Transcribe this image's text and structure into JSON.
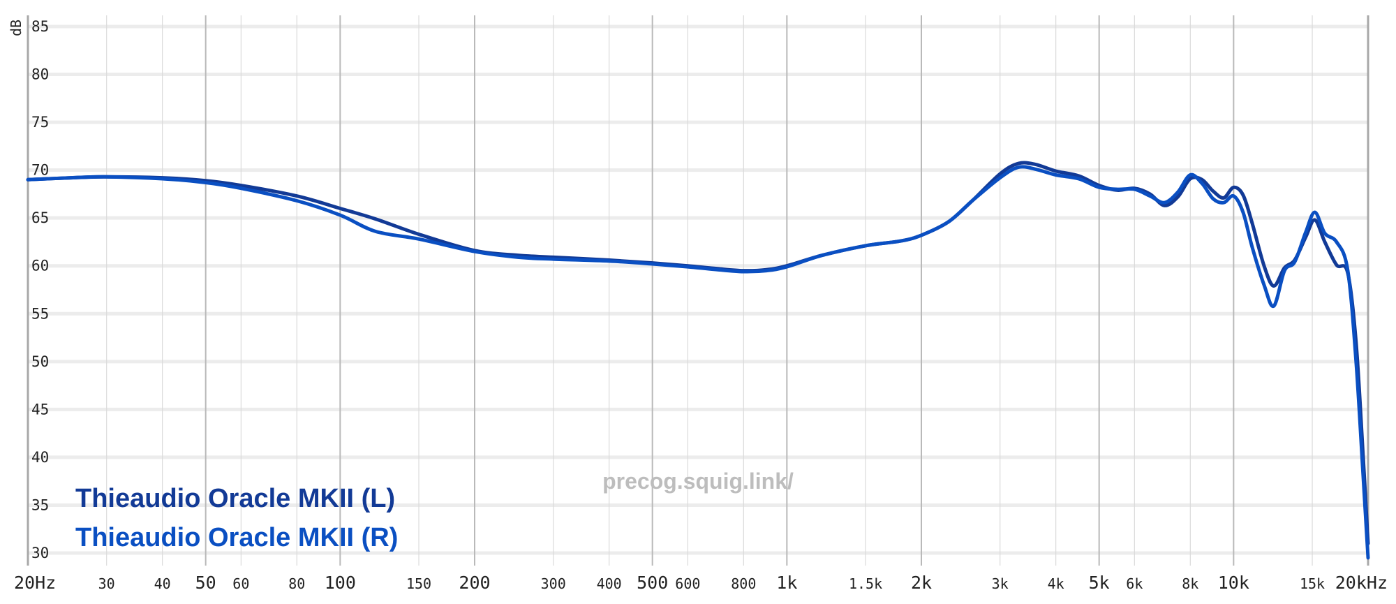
{
  "chart_data": {
    "type": "line",
    "title": "",
    "xlabel": "",
    "ylabel": "dB",
    "x_scale": "log",
    "xlim": [
      20,
      20000
    ],
    "ylim": [
      30,
      85
    ],
    "grid": true,
    "legend_position": "bottom-left",
    "watermark": "precog.squig.link/",
    "x_ticks": [
      {
        "value": 20,
        "label": "20Hz",
        "major": true
      },
      {
        "value": 30,
        "label": "30",
        "major": false
      },
      {
        "value": 40,
        "label": "40",
        "major": false
      },
      {
        "value": 50,
        "label": "50",
        "major": true
      },
      {
        "value": 60,
        "label": "60",
        "major": false
      },
      {
        "value": 80,
        "label": "80",
        "major": false
      },
      {
        "value": 100,
        "label": "100",
        "major": true
      },
      {
        "value": 150,
        "label": "150",
        "major": false
      },
      {
        "value": 200,
        "label": "200",
        "major": true
      },
      {
        "value": 300,
        "label": "300",
        "major": false
      },
      {
        "value": 400,
        "label": "400",
        "major": false
      },
      {
        "value": 500,
        "label": "500",
        "major": true
      },
      {
        "value": 600,
        "label": "600",
        "major": false
      },
      {
        "value": 800,
        "label": "800",
        "major": false
      },
      {
        "value": 1000,
        "label": "1k",
        "major": true
      },
      {
        "value": 1500,
        "label": "1.5k",
        "major": false
      },
      {
        "value": 2000,
        "label": "2k",
        "major": true
      },
      {
        "value": 3000,
        "label": "3k",
        "major": false
      },
      {
        "value": 4000,
        "label": "4k",
        "major": false
      },
      {
        "value": 5000,
        "label": "5k",
        "major": true
      },
      {
        "value": 6000,
        "label": "6k",
        "major": false
      },
      {
        "value": 8000,
        "label": "8k",
        "major": false
      },
      {
        "value": 10000,
        "label": "10k",
        "major": true
      },
      {
        "value": 15000,
        "label": "15k",
        "major": false
      },
      {
        "value": 20000,
        "label": "20kHz",
        "major": true
      }
    ],
    "y_ticks": [
      85,
      80,
      75,
      70,
      65,
      60,
      55,
      50,
      45,
      40,
      35,
      30
    ],
    "series": [
      {
        "name": "Thieaudio Oracle MKII (L)",
        "color": "#123a96",
        "points": [
          [
            20,
            69.0
          ],
          [
            25,
            69.2
          ],
          [
            30,
            69.3
          ],
          [
            40,
            69.2
          ],
          [
            50,
            68.9
          ],
          [
            60,
            68.4
          ],
          [
            80,
            67.3
          ],
          [
            100,
            66.0
          ],
          [
            120,
            64.9
          ],
          [
            150,
            63.3
          ],
          [
            200,
            61.6
          ],
          [
            250,
            61.1
          ],
          [
            300,
            60.9
          ],
          [
            400,
            60.6
          ],
          [
            500,
            60.3
          ],
          [
            600,
            60.0
          ],
          [
            700,
            59.7
          ],
          [
            800,
            59.5
          ],
          [
            900,
            59.6
          ],
          [
            1000,
            60.0
          ],
          [
            1200,
            61.1
          ],
          [
            1500,
            62.1
          ],
          [
            1800,
            62.6
          ],
          [
            2000,
            63.2
          ],
          [
            2300,
            64.6
          ],
          [
            2600,
            66.8
          ],
          [
            3000,
            69.6
          ],
          [
            3300,
            70.7
          ],
          [
            3600,
            70.6
          ],
          [
            4000,
            69.9
          ],
          [
            4500,
            69.4
          ],
          [
            5000,
            68.4
          ],
          [
            5500,
            67.9
          ],
          [
            6000,
            68.1
          ],
          [
            6500,
            67.5
          ],
          [
            7000,
            66.3
          ],
          [
            7500,
            67.2
          ],
          [
            8000,
            69.1
          ],
          [
            8500,
            69.0
          ],
          [
            9000,
            67.8
          ],
          [
            9500,
            67.1
          ],
          [
            10000,
            68.2
          ],
          [
            10500,
            67.4
          ],
          [
            11000,
            64.5
          ],
          [
            11700,
            60.0
          ],
          [
            12300,
            57.9
          ],
          [
            13000,
            59.8
          ],
          [
            13700,
            60.6
          ],
          [
            14500,
            63.0
          ],
          [
            15200,
            64.8
          ],
          [
            16000,
            62.5
          ],
          [
            17000,
            60.1
          ],
          [
            18000,
            59.3
          ],
          [
            18800,
            52.0
          ],
          [
            19500,
            40.0
          ],
          [
            20000,
            31.0
          ]
        ]
      },
      {
        "name": "Thieaudio Oracle MKII (R)",
        "color": "#0a4fc2",
        "points": [
          [
            20,
            69.0
          ],
          [
            25,
            69.2
          ],
          [
            30,
            69.3
          ],
          [
            40,
            69.1
          ],
          [
            50,
            68.7
          ],
          [
            60,
            68.1
          ],
          [
            80,
            66.8
          ],
          [
            100,
            65.3
          ],
          [
            120,
            63.6
          ],
          [
            150,
            62.8
          ],
          [
            200,
            61.5
          ],
          [
            250,
            60.9
          ],
          [
            300,
            60.7
          ],
          [
            400,
            60.5
          ],
          [
            500,
            60.2
          ],
          [
            600,
            59.9
          ],
          [
            700,
            59.6
          ],
          [
            800,
            59.4
          ],
          [
            900,
            59.5
          ],
          [
            1000,
            59.9
          ],
          [
            1200,
            61.1
          ],
          [
            1500,
            62.1
          ],
          [
            1800,
            62.6
          ],
          [
            2000,
            63.2
          ],
          [
            2300,
            64.6
          ],
          [
            2600,
            66.8
          ],
          [
            3000,
            69.2
          ],
          [
            3300,
            70.3
          ],
          [
            3600,
            70.1
          ],
          [
            4000,
            69.5
          ],
          [
            4500,
            69.1
          ],
          [
            5000,
            68.2
          ],
          [
            5500,
            68.0
          ],
          [
            6000,
            68.0
          ],
          [
            6500,
            67.3
          ],
          [
            7000,
            66.6
          ],
          [
            7500,
            67.7
          ],
          [
            8000,
            69.5
          ],
          [
            8500,
            68.6
          ],
          [
            9000,
            67.0
          ],
          [
            9500,
            66.6
          ],
          [
            10000,
            67.3
          ],
          [
            10500,
            65.6
          ],
          [
            11000,
            62.0
          ],
          [
            11700,
            58.0
          ],
          [
            12300,
            55.8
          ],
          [
            13000,
            59.5
          ],
          [
            13700,
            60.4
          ],
          [
            14500,
            63.5
          ],
          [
            15200,
            65.6
          ],
          [
            16000,
            63.4
          ],
          [
            17000,
            62.5
          ],
          [
            18000,
            59.6
          ],
          [
            18800,
            50.0
          ],
          [
            19500,
            38.0
          ],
          [
            20000,
            29.5
          ]
        ]
      }
    ]
  }
}
